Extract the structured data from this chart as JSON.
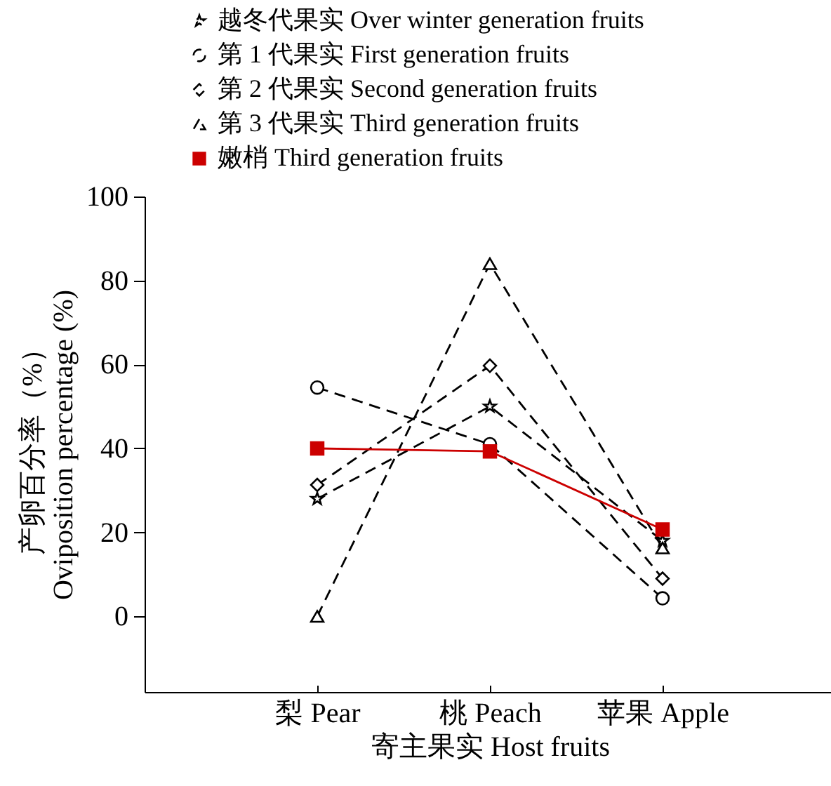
{
  "chart_data": {
    "type": "line",
    "xlabel": "寄主果实 Host fruits",
    "ylabel": "产卵百分率（%）\nOviposition percentage (%)",
    "categories": [
      "梨 Pear",
      "桃 Peach",
      "苹果 Apple"
    ],
    "series": [
      {
        "name": "越冬代果实 Over winter generation fruits",
        "color": "#000000",
        "marker": "star",
        "line_style": "dashed",
        "values": [
          28,
          50,
          18
        ]
      },
      {
        "name": "第 1 代果实 First generation fruits",
        "color": "#000000",
        "marker": "circle",
        "line_style": "dashed",
        "values": [
          54.5,
          41,
          4.3
        ]
      },
      {
        "name": "第 2 代果实 Second generation fruits",
        "color": "#000000",
        "marker": "diamond",
        "line_style": "dashed",
        "values": [
          31.3,
          59.7,
          9
        ]
      },
      {
        "name": "第 3 代果实 Third generation fruits",
        "color": "#000000",
        "marker": "triangle",
        "line_style": "dashed",
        "values": [
          0,
          84,
          16.3
        ]
      },
      {
        "name": "嫩梢 Third generation fruits",
        "color": "#cc0000",
        "marker": "square",
        "line_style": "solid",
        "values": [
          40,
          39.3,
          20.7
        ]
      }
    ],
    "ylim": [
      -18,
      100
    ],
    "yticks": [
      0,
      20,
      40,
      60,
      80,
      100
    ],
    "grid": false,
    "legend": "top"
  }
}
